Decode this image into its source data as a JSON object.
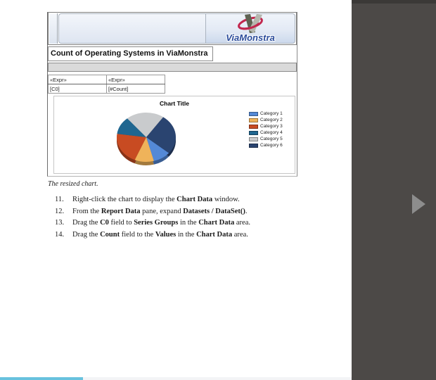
{
  "report": {
    "logo_text": "ViaMonstra",
    "title": "Count of Operating Systems in ViaMonstra",
    "table": {
      "headers": [
        "«Expr»",
        "«Expr»"
      ],
      "rows": [
        [
          "[C0]",
          "[#Count]"
        ]
      ]
    }
  },
  "chart_data": {
    "type": "pie",
    "title": "Chart Title",
    "legend_position": "right",
    "grid": false,
    "slices": [
      {
        "name": "Category 1",
        "color": "#5489d6",
        "value_pct": 9.7,
        "start_deg": 130,
        "end_deg": 165
      },
      {
        "name": "Category 2",
        "color": "#efb35a",
        "value_pct": 10.6,
        "start_deg": 165,
        "end_deg": 203
      },
      {
        "name": "Category 3",
        "color": "#c84b22",
        "value_pct": 20.8,
        "start_deg": 203,
        "end_deg": 278
      },
      {
        "name": "Category 4",
        "color": "#1f6690",
        "value_pct": 11.7,
        "start_deg": 278,
        "end_deg": 320
      },
      {
        "name": "Category 5",
        "color": "#c9cbcd",
        "value_pct": 20.8,
        "start_deg": 320,
        "end_deg": 395
      },
      {
        "name": "Category 6",
        "color": "#2a4470",
        "value_pct": 26.4,
        "start_deg": 35,
        "end_deg": 130
      }
    ]
  },
  "caption": "The resized chart.",
  "instructions": {
    "items": [
      {
        "num": "11.",
        "segments": [
          {
            "text": "Right-click the chart to display the "
          },
          {
            "text": "Chart Data",
            "bold": true
          },
          {
            "text": " window."
          }
        ]
      },
      {
        "num": "12.",
        "segments": [
          {
            "text": "From the "
          },
          {
            "text": "Report Data",
            "bold": true
          },
          {
            "text": " pane, expand "
          },
          {
            "text": "Datasets / DataSet()",
            "bold": true
          },
          {
            "text": "."
          }
        ]
      },
      {
        "num": "13.",
        "segments": [
          {
            "text": "Drag the "
          },
          {
            "text": "C0",
            "bold": true
          },
          {
            "text": " field to "
          },
          {
            "text": "Series Groups",
            "bold": true
          },
          {
            "text": " in the "
          },
          {
            "text": "Chart Data",
            "bold": true
          },
          {
            "text": " area."
          }
        ]
      },
      {
        "num": "14.",
        "segments": [
          {
            "text": "Drag the "
          },
          {
            "text": "Count",
            "bold": true
          },
          {
            "text": " field to the "
          },
          {
            "text": "Values",
            "bold": true
          },
          {
            "text": " in the "
          },
          {
            "text": "Chart Data",
            "bold": true
          },
          {
            "text": " area."
          }
        ]
      }
    ]
  },
  "reader": {
    "progress_pct": 23.6,
    "colors": {
      "panel": "#4c4947",
      "panel_top_strip": "#3b3937",
      "arrow": "#8d8d8d",
      "progress_fill": "#68c2de",
      "progress_track": "#f3f4f6",
      "logo_red": "#c2274e",
      "logo_blue": "#2b4c9b",
      "ribbon_dark": "#5f6352",
      "ribbon_light": "#b5b7ae"
    },
    "icons": [
      "next-page-arrow"
    ]
  }
}
